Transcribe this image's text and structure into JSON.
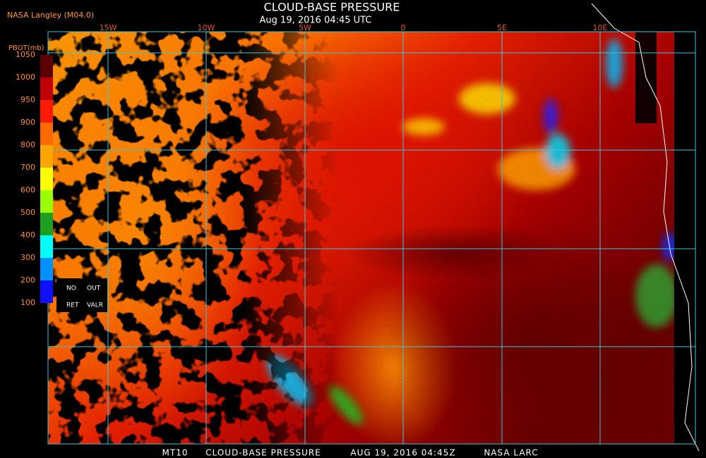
{
  "header": {
    "source": "NASA Langley (M04.0)",
    "title": "CLOUD-BASE PRESSURE",
    "timestamp": "Aug 19, 2016 04:45 UTC"
  },
  "legend": {
    "label": "PBOT(mb)",
    "ticks": [
      1050,
      1000,
      950,
      900,
      800,
      700,
      600,
      500,
      400,
      300,
      200,
      100
    ],
    "colors": [
      "#5a0000",
      "#c00000",
      "#ff1a00",
      "#ff6a00",
      "#ffa500",
      "#ffff00",
      "#9aff00",
      "#1f9f1f",
      "#00ffff",
      "#0090ff",
      "#1010ff",
      "#9030f0"
    ],
    "notes": [
      "NO",
      "OUT",
      "RET",
      "VALR"
    ]
  },
  "map": {
    "lon_labels": [
      "15W",
      "10W",
      "5W",
      "0",
      "5E",
      "10E"
    ]
  },
  "footer": {
    "parts": [
      "MT10",
      "CLOUD-BASE PRESSURE",
      "AUG 19, 2016 04:45Z",
      "NASA LARC"
    ]
  }
}
